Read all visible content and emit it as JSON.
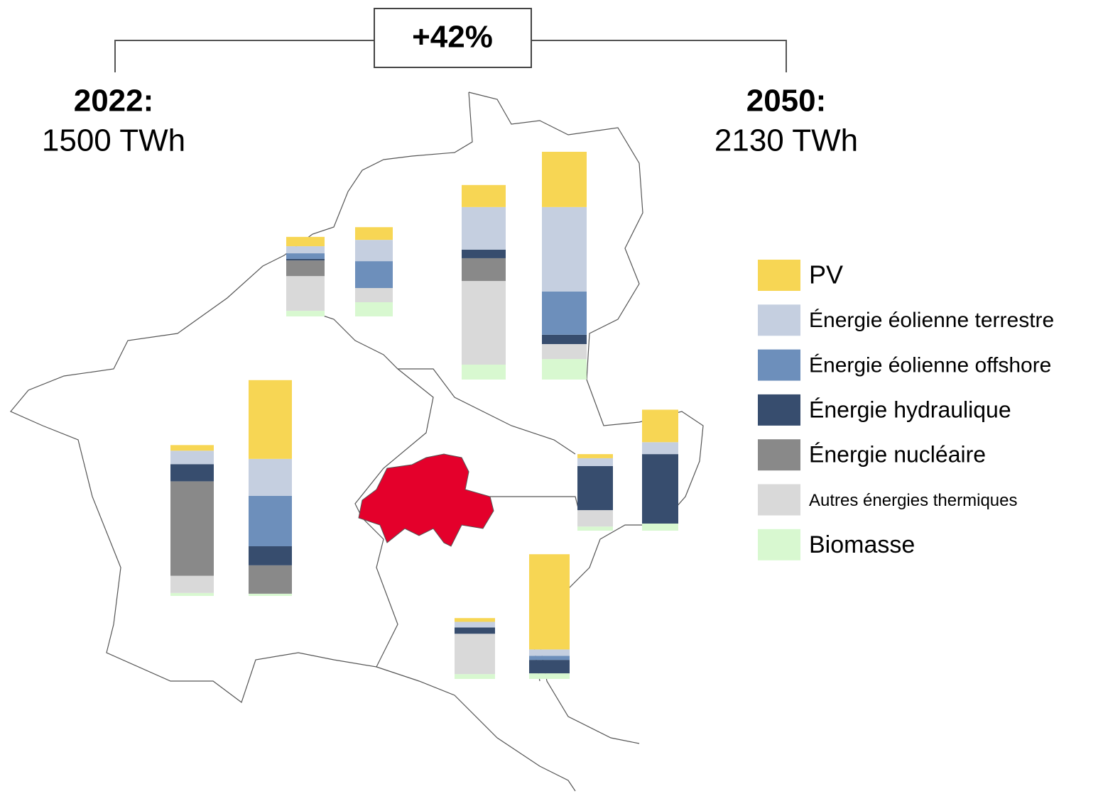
{
  "chart_data": {
    "type": "stacked-bar-map",
    "annotations": {
      "change": "+42%",
      "start_year": "2022:",
      "start_total": "1500 TWh",
      "end_year": "2050:",
      "end_total": "2130 TWh"
    },
    "series": [
      {
        "name": "PV",
        "color": "#f7d654",
        "values": [
          25,
          34,
          59,
          148,
          15,
          211,
          11,
          87,
          10,
          255
        ]
      },
      {
        "name": "Énergie éolienne terrestre",
        "color": "#c5cfe0",
        "values": [
          19,
          57,
          114,
          226,
          36,
          99,
          21,
          32,
          15,
          17
        ]
      },
      {
        "name": "Énergie éolienne offshore",
        "color": "#6d8fbb",
        "values": [
          15,
          72,
          0,
          116,
          0,
          135,
          0,
          0,
          0,
          11
        ]
      },
      {
        "name": "Énergie hydraulique",
        "color": "#374d6e",
        "values": [
          4,
          0,
          23,
          25,
          46,
          51,
          118,
          186,
          17,
          36
        ]
      },
      {
        "name": "Énergie nucléaire",
        "color": "#898989",
        "values": [
          42,
          0,
          61,
          0,
          253,
          76,
          0,
          0,
          0,
          0
        ]
      },
      {
        "name": "Autres énergies thermiques",
        "color": "#d9d9d9",
        "values": [
          93,
          38,
          224,
          40,
          46,
          0,
          44,
          0,
          108,
          0
        ]
      },
      {
        "name": "Biomasse",
        "color": "#d8f8d0",
        "values": [
          15,
          38,
          40,
          55,
          8,
          6,
          11,
          19,
          13,
          15
        ]
      }
    ]
  }
}
